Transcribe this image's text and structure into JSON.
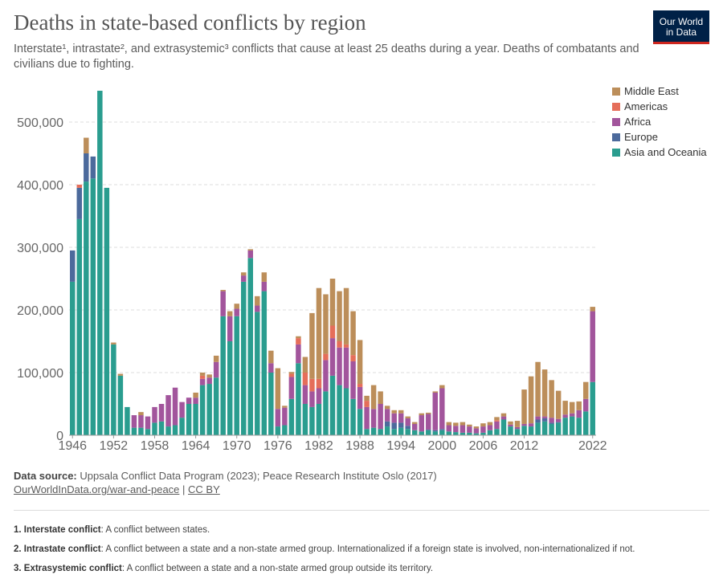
{
  "header": {
    "title": "Deaths in state-based conflicts by region",
    "subtitle": "Interstate¹, intrastate², and extrasystemic³ conflicts that cause at least 25 deaths during a year. Deaths of combatants and civilians due to fighting.",
    "logo_line1": "Our World",
    "logo_line2": "in Data"
  },
  "footer": {
    "source_label": "Data source:",
    "source_text": "Uppsala Conflict Data Program (2023); Peace Research Institute Oslo (2017)",
    "link_text": "OurWorldInData.org/war-and-peace",
    "separator": " | ",
    "license": "CC BY",
    "notes": [
      {
        "label": "1. Interstate conflict",
        "text": ": A conflict between states."
      },
      {
        "label": "2. Intrastate conflict",
        "text": ": A conflict between a state and a non-state armed group. Internationalized if a foreign state is involved, non-internationalized if not."
      },
      {
        "label": "3. Extrasystemic conflict",
        "text": ": A conflict between a state and a non-state armed group outside its territory."
      }
    ]
  },
  "chart_data": {
    "type": "bar",
    "stacked": true,
    "title": "Deaths in state-based conflicts by region",
    "xlabel": "",
    "ylabel": "",
    "ylim": [
      0,
      550000
    ],
    "yticks": [
      0,
      100000,
      200000,
      300000,
      400000,
      500000
    ],
    "ytick_labels": [
      "0",
      "100,000",
      "200,000",
      "300,000",
      "400,000",
      "500,000"
    ],
    "xtick_labels": [
      "1946",
      "1952",
      "1958",
      "1964",
      "1970",
      "1976",
      "1982",
      "1988",
      "1994",
      "2000",
      "2006",
      "2012",
      "2022"
    ],
    "legend_position": "right",
    "categories": [
      "1946",
      "1947",
      "1948",
      "1949",
      "1950",
      "1951",
      "1952",
      "1953",
      "1954",
      "1955",
      "1956",
      "1957",
      "1958",
      "1959",
      "1960",
      "1961",
      "1962",
      "1963",
      "1964",
      "1965",
      "1966",
      "1967",
      "1968",
      "1969",
      "1970",
      "1971",
      "1972",
      "1973",
      "1974",
      "1975",
      "1976",
      "1977",
      "1978",
      "1979",
      "1980",
      "1981",
      "1982",
      "1983",
      "1984",
      "1985",
      "1986",
      "1987",
      "1988",
      "1989",
      "1990",
      "1991",
      "1992",
      "1993",
      "1994",
      "1995",
      "1996",
      "1997",
      "1998",
      "1999",
      "2000",
      "2001",
      "2002",
      "2003",
      "2004",
      "2005",
      "2006",
      "2007",
      "2008",
      "2009",
      "2010",
      "2011",
      "2012",
      "2013",
      "2014",
      "2015",
      "2016",
      "2017",
      "2018",
      "2019",
      "2020",
      "2021",
      "2022"
    ],
    "series": [
      {
        "name": "Asia and Oceania",
        "color": "#2a9d8f",
        "values": [
          245000,
          345000,
          405000,
          410000,
          550000,
          395000,
          145000,
          95000,
          45000,
          12000,
          12000,
          10000,
          20000,
          22000,
          14000,
          16000,
          28000,
          50000,
          50000,
          80000,
          82000,
          92000,
          190000,
          150000,
          190000,
          245000,
          283000,
          197000,
          230000,
          100000,
          14000,
          16000,
          58000,
          115000,
          50000,
          45000,
          50000,
          70000,
          95000,
          80000,
          75000,
          58000,
          42000,
          10000,
          12000,
          10000,
          14000,
          10000,
          12000,
          10000,
          8000,
          6000,
          8000,
          6000,
          8000,
          6000,
          5000,
          4000,
          4000,
          3000,
          4000,
          8000,
          10000,
          25000,
          14000,
          10000,
          15000,
          14000,
          20000,
          22000,
          18000,
          20000,
          28000,
          30000,
          28000,
          38000,
          85000
        ]
      },
      {
        "name": "Europe",
        "color": "#4c6a9c",
        "values": [
          50000,
          50000,
          45000,
          35000,
          0,
          0,
          0,
          0,
          0,
          0,
          0,
          0,
          0,
          0,
          0,
          0,
          0,
          0,
          0,
          0,
          0,
          0,
          0,
          0,
          0,
          0,
          0,
          0,
          0,
          0,
          0,
          0,
          0,
          0,
          0,
          0,
          0,
          0,
          0,
          0,
          0,
          0,
          0,
          0,
          0,
          0,
          8000,
          10000,
          8000,
          5000,
          0,
          0,
          1000,
          2000,
          2000,
          0,
          0,
          0,
          0,
          0,
          0,
          0,
          0,
          0,
          0,
          0,
          0,
          0,
          5000,
          5000,
          2000,
          1000,
          0,
          0,
          0,
          0,
          0
        ]
      },
      {
        "name": "Africa",
        "color": "#a2559c",
        "values": [
          0,
          0,
          0,
          0,
          0,
          0,
          0,
          0,
          0,
          20000,
          20000,
          20000,
          25000,
          28000,
          50000,
          60000,
          25000,
          10000,
          10000,
          10000,
          10000,
          25000,
          40000,
          40000,
          12000,
          10000,
          12000,
          10000,
          15000,
          15000,
          28000,
          28000,
          35000,
          30000,
          30000,
          25000,
          25000,
          50000,
          60000,
          60000,
          65000,
          60000,
          35000,
          35000,
          30000,
          40000,
          20000,
          15000,
          15000,
          12000,
          10000,
          26000,
          25000,
          60000,
          65000,
          10000,
          10000,
          12000,
          10000,
          8000,
          10000,
          8000,
          12000,
          5000,
          3000,
          3000,
          3000,
          5000,
          5000,
          3000,
          8000,
          5000,
          5000,
          5000,
          12000,
          20000,
          113000
        ]
      },
      {
        "name": "Americas",
        "color": "#e56e5a",
        "values": [
          0,
          5000,
          0,
          0,
          0,
          0,
          0,
          0,
          0,
          0,
          0,
          0,
          0,
          0,
          0,
          0,
          0,
          0,
          0,
          5000,
          0,
          0,
          0,
          0,
          0,
          0,
          0,
          0,
          0,
          0,
          0,
          0,
          5000,
          10000,
          20000,
          20000,
          15000,
          10000,
          20000,
          10000,
          5000,
          10000,
          5000,
          10000,
          0,
          0,
          0,
          0,
          0,
          0,
          0,
          0,
          0,
          0,
          0,
          0,
          0,
          0,
          0,
          0,
          0,
          0,
          2000,
          0,
          0,
          0,
          0,
          0,
          0,
          0,
          0,
          0,
          0,
          0,
          0,
          0,
          0
        ]
      },
      {
        "name": "Middle East",
        "color": "#bc8e5a",
        "values": [
          0,
          0,
          25000,
          0,
          0,
          0,
          3000,
          3000,
          0,
          0,
          5000,
          0,
          0,
          0,
          0,
          0,
          0,
          0,
          8000,
          5000,
          5000,
          10000,
          2000,
          8000,
          8000,
          5000,
          2000,
          15000,
          15000,
          20000,
          65000,
          3000,
          3000,
          3000,
          25000,
          105000,
          145000,
          95000,
          75000,
          80000,
          90000,
          70000,
          70000,
          8000,
          38000,
          20000,
          5000,
          5000,
          5000,
          3000,
          3000,
          3000,
          2000,
          2000,
          5000,
          5000,
          5000,
          5000,
          3000,
          3000,
          5000,
          5000,
          5000,
          5000,
          5000,
          10000,
          55000,
          75000,
          87000,
          75000,
          60000,
          45000,
          22000,
          18000,
          14000,
          27000,
          7000
        ]
      }
    ]
  }
}
